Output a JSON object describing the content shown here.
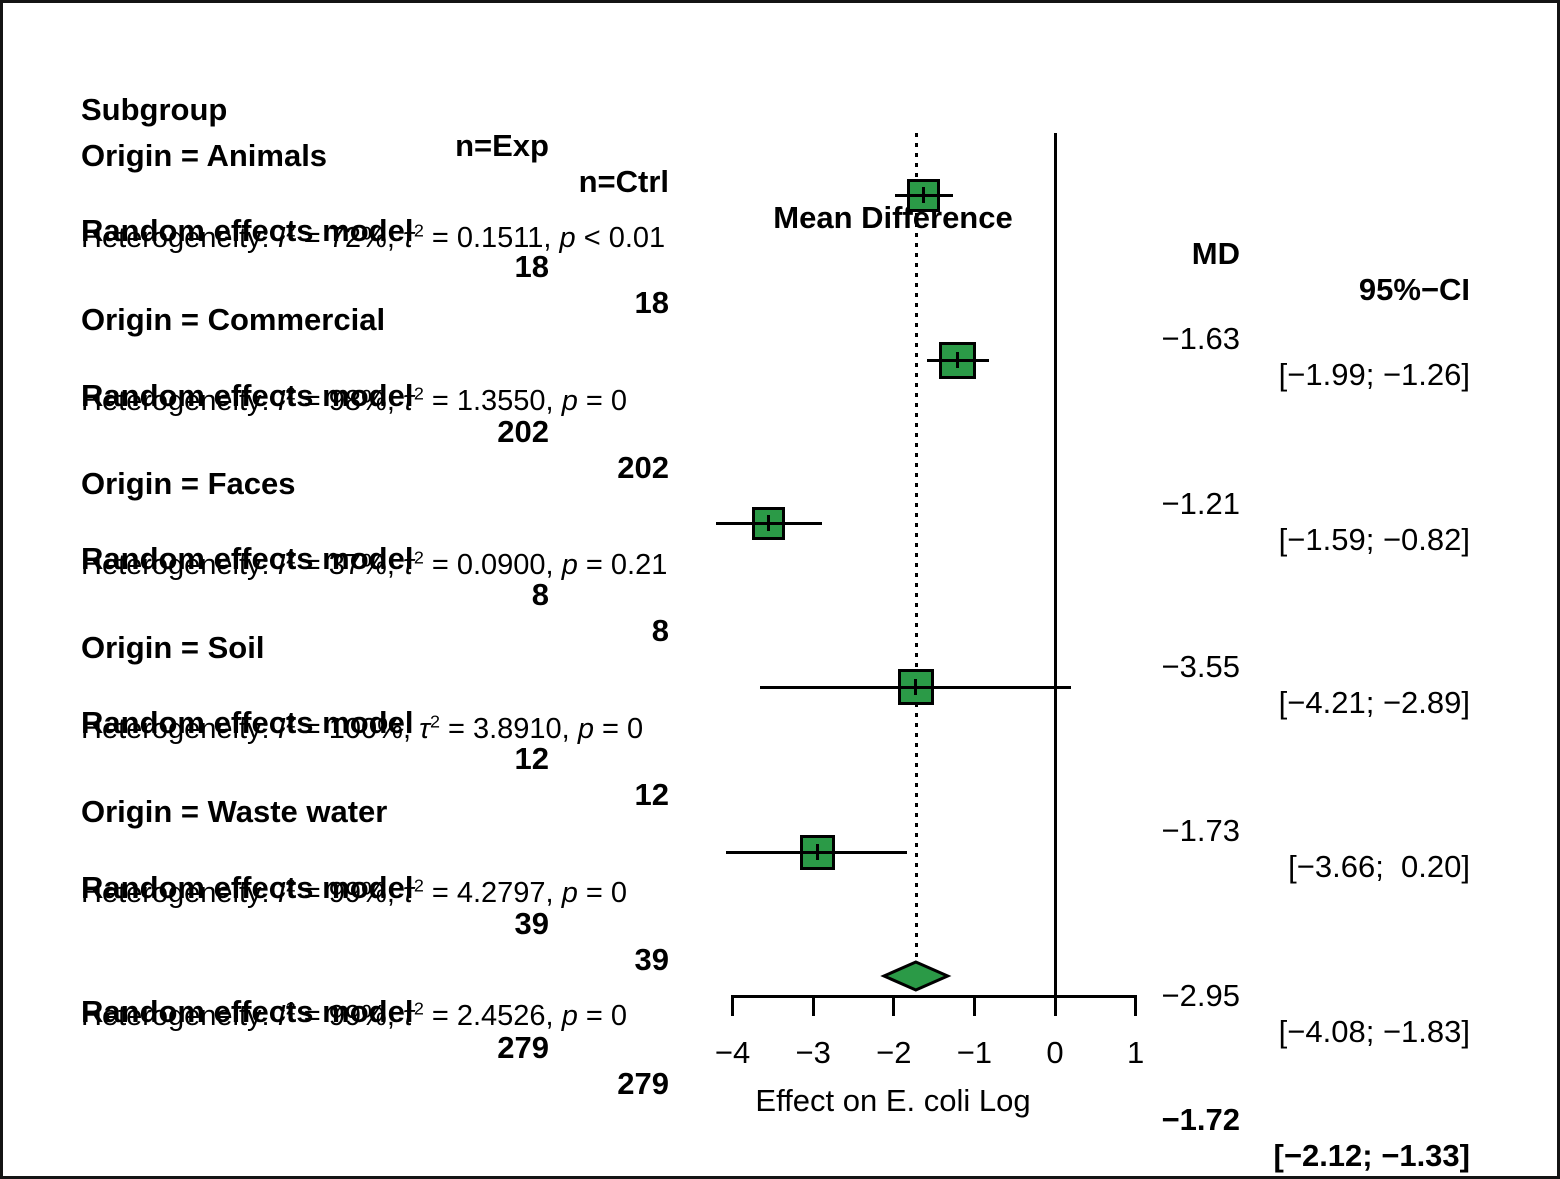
{
  "figure": {
    "background": "#ffffff",
    "border_color": "#141414",
    "marker_color": "#2B9A47",
    "line_color": "#000000"
  },
  "header": {
    "subgroup": "Subgroup",
    "n_exp": "n=Exp",
    "n_ctrl": "n=Ctrl",
    "mean_difference": "Mean Difference",
    "md": "MD",
    "ci": "95%−CI"
  },
  "chart_data": {
    "type": "forest",
    "xlabel": "Effect on E. coli Log",
    "axis": {
      "ticks": [
        -4,
        -3,
        -2,
        -1,
        0,
        1
      ],
      "tick_labels": [
        "−4",
        "−3",
        "−2",
        "−1",
        "0",
        "1"
      ],
      "label": "Effect on E. coli Log",
      "zero_line": 0,
      "reference_line": -1.72,
      "xlim": [
        -4.3,
        1.3
      ]
    },
    "subgroups": [
      {
        "label": "Origin = Animals",
        "model": "Random effects model",
        "n_exp": 18,
        "n_ctrl": 18,
        "md": -1.63,
        "ci_low": -1.99,
        "ci_high": -1.26,
        "md_text": "−1.63",
        "ci_text": "[−1.99; −1.26]",
        "het": {
          "prefix": "Heterogeneity: ",
          "i": "I",
          "sup": "2",
          "mid1": " = 72%, ",
          "tau": "τ",
          "mid2": " = 0.1511, ",
          "p": "p",
          "tail": " < 0.01"
        }
      },
      {
        "label": "Origin = Commercial",
        "model": "Random effects model",
        "n_exp": 202,
        "n_ctrl": 202,
        "md": -1.21,
        "ci_low": -1.59,
        "ci_high": -0.82,
        "md_text": "−1.21",
        "ci_text": "[−1.59; −0.82]",
        "het": {
          "prefix": "Heterogeneity: ",
          "i": "I",
          "sup": "2",
          "mid1": " = 98%, ",
          "tau": "τ",
          "mid2": " = 1.3550, ",
          "p": "p",
          "tail": " = 0"
        }
      },
      {
        "label": "Origin = Faces",
        "model": "Random effects model",
        "n_exp": 8,
        "n_ctrl": 8,
        "md": -3.55,
        "ci_low": -4.21,
        "ci_high": -2.89,
        "md_text": "−3.55",
        "ci_text": "[−4.21; −2.89]",
        "het": {
          "prefix": "Heterogeneity: ",
          "i": "I",
          "sup": "2",
          "mid1": " = 37%, ",
          "tau": "τ",
          "mid2": " = 0.0900, ",
          "p": "p",
          "tail": " = 0.21"
        }
      },
      {
        "label": "Origin = Soil",
        "model": "Random effects model",
        "n_exp": 12,
        "n_ctrl": 12,
        "md": -1.73,
        "ci_low": -3.66,
        "ci_high": 0.2,
        "md_text": "−1.73",
        "ci_text": "[−3.66;  0.20]",
        "het": {
          "prefix": "Heterogeneity: ",
          "i": "I",
          "sup": "2",
          "mid1": " = 100%, ",
          "tau": "τ",
          "mid2": " = 3.8910, ",
          "p": "p",
          "tail": " = 0"
        }
      },
      {
        "label": "Origin = Waste water",
        "model": "Random effects model",
        "n_exp": 39,
        "n_ctrl": 39,
        "md": -2.95,
        "ci_low": -4.08,
        "ci_high": -1.83,
        "md_text": "−2.95",
        "ci_text": "[−4.08; −1.83]",
        "het": {
          "prefix": "Heterogeneity: ",
          "i": "I",
          "sup": "2",
          "mid1": " = 99%, ",
          "tau": "τ",
          "mid2": " = 4.2797, ",
          "p": "p",
          "tail": " = 0"
        }
      }
    ],
    "overall": {
      "model": "Random effects model",
      "n_exp": 279,
      "n_ctrl": 279,
      "md": -1.72,
      "ci_low": -2.12,
      "ci_high": -1.33,
      "md_text": "−1.72",
      "ci_text": "[−2.12; −1.33]",
      "het": {
        "prefix": "Heterogeneity: ",
        "i": "I",
        "sup": "2",
        "mid1": " = 99%, ",
        "tau": "τ",
        "mid2": " = 2.4526, ",
        "p": "p",
        "tail": " = 0"
      }
    }
  }
}
